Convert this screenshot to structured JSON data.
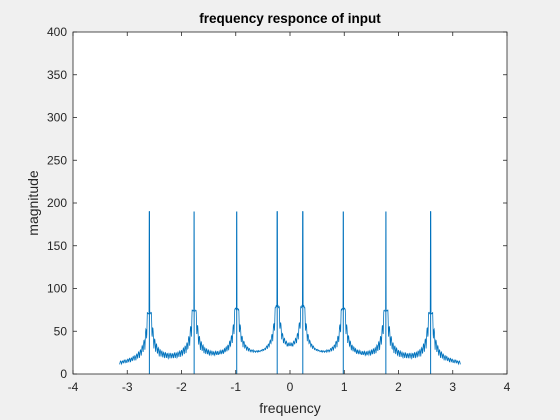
{
  "chart_data": {
    "type": "line",
    "title": "frequency responce of input",
    "xlabel": "frequency",
    "ylabel": "magnitude",
    "xlim": [
      -4,
      4
    ],
    "ylim": [
      0,
      400
    ],
    "x_ticks": [
      -4,
      -3,
      -2,
      -1,
      0,
      1,
      2,
      3,
      4
    ],
    "y_ticks": [
      0,
      50,
      100,
      150,
      200,
      250,
      300,
      350,
      400
    ],
    "x_tick_labels": [
      "-4",
      "-3",
      "-2",
      "-1",
      "0",
      "1",
      "2",
      "3",
      "4"
    ],
    "y_tick_labels": [
      "0",
      "50",
      "100",
      "150",
      "200",
      "250",
      "300",
      "350",
      "400"
    ],
    "grid": false,
    "line_color": "#0072BD",
    "signal_range": [
      -3.1416,
      3.1416
    ],
    "baseline_magnitude": 2.5,
    "peaks": [
      {
        "x": -2.592,
        "y": 190
      },
      {
        "x": -1.767,
        "y": 190
      },
      {
        "x": -0.982,
        "y": 190
      },
      {
        "x": -0.236,
        "y": 190
      },
      {
        "x": 0.236,
        "y": 190
      },
      {
        "x": 0.982,
        "y": 190
      },
      {
        "x": 1.767,
        "y": 190
      },
      {
        "x": 2.592,
        "y": 190
      }
    ]
  }
}
